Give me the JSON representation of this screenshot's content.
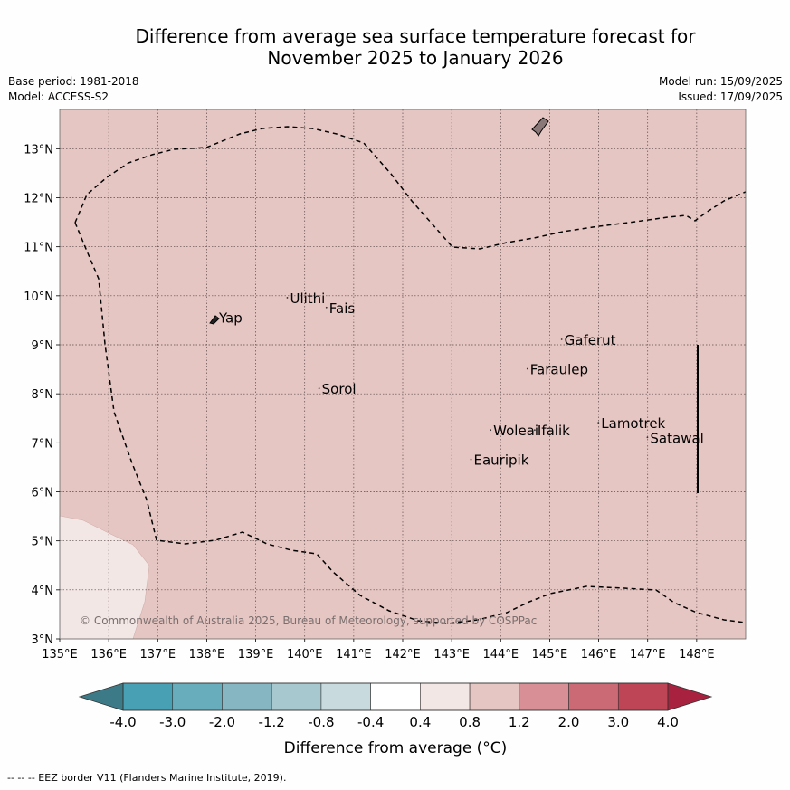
{
  "title": {
    "line1": "Difference from average sea surface temperature forecast for",
    "line2": "November 2025 to January 2026"
  },
  "meta": {
    "base_period": "Base period: 1981-2018",
    "model": "Model: ACCESS-S2",
    "model_run": "Model run: 15/09/2025",
    "issued": "Issued: 17/09/2025"
  },
  "map": {
    "background_anomaly_bin": "0.8 to 1.2",
    "background_color": "#e6c6c2",
    "lower_left_patch_bin": "0.4 to 0.8",
    "lower_left_patch_color": "#f3e7e5",
    "x_ticks": [
      "135°E",
      "136°E",
      "137°E",
      "138°E",
      "139°E",
      "140°E",
      "141°E",
      "142°E",
      "143°E",
      "144°E",
      "145°E",
      "146°E",
      "147°E",
      "148°E"
    ],
    "y_ticks": [
      "3°N",
      "4°N",
      "5°N",
      "6°N",
      "7°N",
      "8°N",
      "9°N",
      "10°N",
      "11°N",
      "12°N",
      "13°N"
    ],
    "extent": {
      "lon": [
        135,
        149
      ],
      "lat": [
        3,
        13.8
      ]
    },
    "places": [
      {
        "name": "Yap",
        "lon": 138.25,
        "lat": 9.45
      },
      {
        "name": "Ulithi",
        "lon": 139.7,
        "lat": 9.85
      },
      {
        "name": "Fais",
        "lon": 140.5,
        "lat": 9.65
      },
      {
        "name": "Sorol",
        "lon": 140.35,
        "lat": 8.0
      },
      {
        "name": "Gaferut",
        "lon": 145.3,
        "lat": 9.0
      },
      {
        "name": "Faraulep",
        "lon": 144.6,
        "lat": 8.4
      },
      {
        "name": "Lamotrek",
        "lon": 146.05,
        "lat": 7.3
      },
      {
        "name": "Satawal",
        "lon": 147.05,
        "lat": 7.0
      },
      {
        "name": "Woleai",
        "lon": 143.85,
        "lat": 7.15
      },
      {
        "name": "Ifalik",
        "lon": 144.75,
        "lat": 7.15
      },
      {
        "name": "Eauripik",
        "lon": 143.45,
        "lat": 6.55
      }
    ],
    "copyright": "© Commonwealth of Australia 2025, Bureau of Meteorology, supported by COSPPac"
  },
  "colorbar": {
    "label": "Difference from average (°C)",
    "tick_labels": [
      "-4.0",
      "-3.0",
      "-2.0",
      "-1.2",
      "-0.8",
      "-0.4",
      "0.4",
      "0.8",
      "1.2",
      "2.0",
      "3.0",
      "4.0"
    ],
    "under_color": "#3c7a87",
    "over_color": "#a8223f",
    "bin_colors": [
      "#47a0b3",
      "#67adbc",
      "#85b6c2",
      "#a8c8cf",
      "#c8dadd",
      "#ffffff",
      "#f3e7e5",
      "#e6c6c2",
      "#d88f96",
      "#cb6a75",
      "#be4555"
    ]
  },
  "footer": "--  --  -- EEZ border V11 (Flanders Marine Institute, 2019)."
}
